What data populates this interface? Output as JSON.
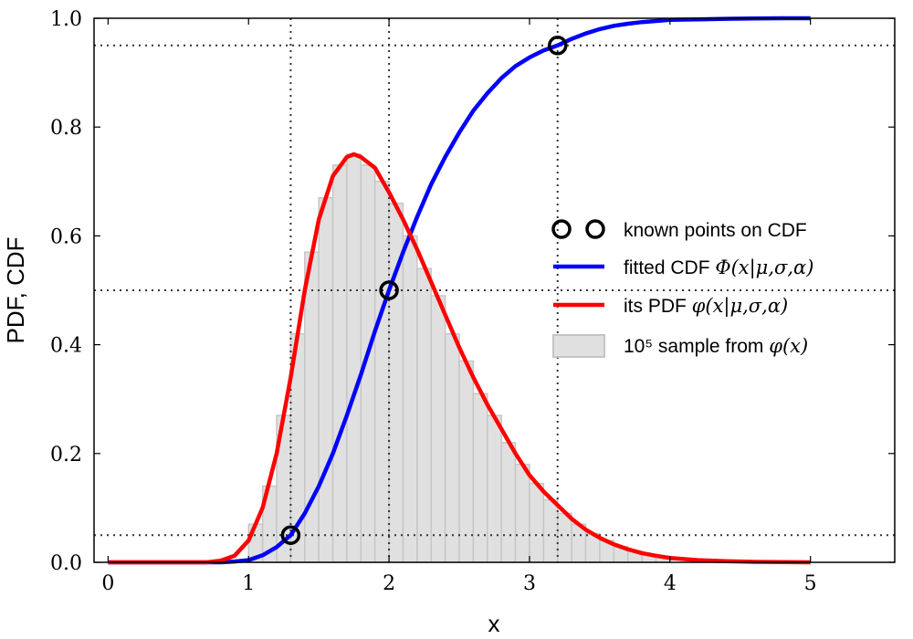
{
  "chart_data": {
    "type": "line",
    "xlabel": "x",
    "ylabel": "PDF, CDF",
    "xlim": [
      -0.1,
      5.6
    ],
    "ylim": [
      0.0,
      1.0
    ],
    "xticks": [
      "0",
      "1",
      "2",
      "3",
      "4",
      "5"
    ],
    "yticks": [
      "0.0",
      "0.2",
      "0.4",
      "0.6",
      "0.8",
      "1.0"
    ],
    "reference_lines": {
      "vertical": [
        1.3,
        2.0,
        3.2
      ],
      "horizontal": [
        0.05,
        0.5,
        0.95
      ]
    },
    "series": [
      {
        "name": "known points on CDF",
        "kind": "scatter",
        "color": "#000000",
        "x": [
          1.3,
          2.0,
          3.2
        ],
        "y": [
          0.05,
          0.5,
          0.95
        ]
      },
      {
        "name": "fitted CDF Φ(x|μ,σ,α)",
        "kind": "line",
        "color": "#0000ff",
        "x": [
          0.0,
          0.8,
          0.9,
          1.0,
          1.1,
          1.2,
          1.3,
          1.4,
          1.5,
          1.6,
          1.7,
          1.8,
          1.9,
          2.0,
          2.1,
          2.2,
          2.3,
          2.4,
          2.5,
          2.6,
          2.7,
          2.8,
          2.9,
          3.0,
          3.1,
          3.2,
          3.3,
          3.4,
          3.5,
          3.6,
          3.7,
          3.8,
          3.9,
          4.0,
          4.2,
          4.4,
          4.6,
          4.8,
          5.0
        ],
        "y": [
          0.0,
          0.0,
          0.0015,
          0.004,
          0.013,
          0.028,
          0.05,
          0.09,
          0.14,
          0.2,
          0.27,
          0.345,
          0.425,
          0.5,
          0.57,
          0.635,
          0.695,
          0.745,
          0.79,
          0.83,
          0.862,
          0.89,
          0.912,
          0.928,
          0.941,
          0.95,
          0.962,
          0.972,
          0.98,
          0.986,
          0.99,
          0.993,
          0.995,
          0.997,
          0.998,
          0.999,
          0.9995,
          1.0,
          1.0
        ]
      },
      {
        "name": "its PDF φ(x|μ,σ,α)",
        "kind": "line",
        "color": "#ff0000",
        "x": [
          0.0,
          0.7,
          0.8,
          0.9,
          1.0,
          1.1,
          1.2,
          1.3,
          1.4,
          1.5,
          1.6,
          1.7,
          1.75,
          1.8,
          1.9,
          2.0,
          2.1,
          2.2,
          2.3,
          2.4,
          2.5,
          2.6,
          2.7,
          2.8,
          2.9,
          3.0,
          3.1,
          3.2,
          3.3,
          3.4,
          3.5,
          3.6,
          3.7,
          3.8,
          3.9,
          4.0,
          4.2,
          4.4,
          4.6,
          4.8,
          5.0
        ],
        "y": [
          0.0,
          0.0,
          0.003,
          0.012,
          0.04,
          0.1,
          0.2,
          0.34,
          0.5,
          0.63,
          0.71,
          0.745,
          0.75,
          0.745,
          0.725,
          0.68,
          0.63,
          0.575,
          0.515,
          0.455,
          0.395,
          0.34,
          0.29,
          0.245,
          0.2,
          0.16,
          0.13,
          0.105,
          0.08,
          0.06,
          0.045,
          0.033,
          0.024,
          0.017,
          0.012,
          0.008,
          0.004,
          0.002,
          0.0008,
          0.0003,
          0.0
        ]
      },
      {
        "name": "10⁵ sample from φ(x)",
        "kind": "histogram",
        "color": "#d3d3d3",
        "bin_width": 0.1,
        "bin_starts": [
          1.0,
          1.1,
          1.2,
          1.3,
          1.4,
          1.5,
          1.6,
          1.7,
          1.8,
          1.9,
          2.0,
          2.1,
          2.2,
          2.3,
          2.4,
          2.5,
          2.6,
          2.7,
          2.8,
          2.9,
          3.0,
          3.1,
          3.2,
          3.3,
          3.4,
          3.5,
          3.6,
          3.7,
          3.8,
          3.9
        ],
        "values": [
          0.07,
          0.14,
          0.27,
          0.42,
          0.57,
          0.67,
          0.73,
          0.75,
          0.73,
          0.7,
          0.66,
          0.6,
          0.54,
          0.49,
          0.42,
          0.37,
          0.31,
          0.27,
          0.22,
          0.18,
          0.145,
          0.115,
          0.09,
          0.07,
          0.053,
          0.04,
          0.029,
          0.02,
          0.014,
          0.01
        ]
      }
    ],
    "legend": {
      "placement": "center-right",
      "entries": [
        {
          "symbol": "markers",
          "prefix": "known points on CDF",
          "math": ""
        },
        {
          "symbol": "blue-line",
          "prefix": "fitted CDF ",
          "math": "Φ(x|μ,σ,α)"
        },
        {
          "symbol": "red-line",
          "prefix": "its PDF ",
          "math": "φ(x|μ,σ,α)"
        },
        {
          "symbol": "gray-patch",
          "prefix": "10⁵ sample from ",
          "math": "φ(x)"
        }
      ]
    }
  }
}
